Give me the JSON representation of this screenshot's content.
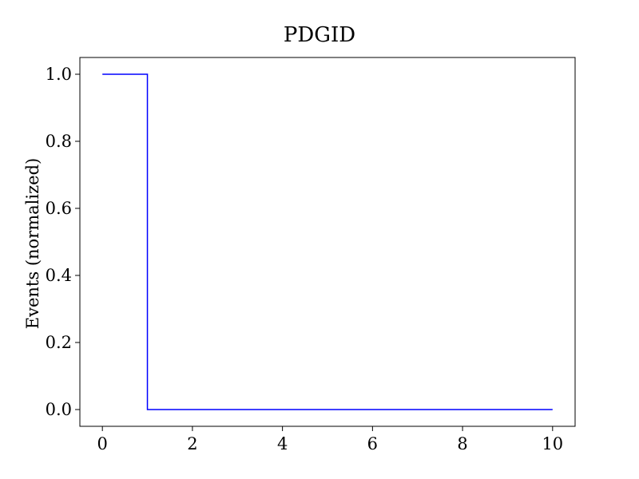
{
  "chart_data": {
    "type": "line",
    "drawstyle": "steps-post",
    "title": "PDGID",
    "xlabel": "",
    "ylabel": "Events (normalized)",
    "xlim": [
      -0.5,
      10.5
    ],
    "ylim": [
      -0.05,
      1.05
    ],
    "xticks": [
      0,
      2,
      4,
      6,
      8,
      10
    ],
    "xtick_labels": [
      "0",
      "2",
      "4",
      "6",
      "8",
      "10"
    ],
    "yticks": [
      0.0,
      0.2,
      0.4,
      0.6,
      0.8,
      1.0
    ],
    "ytick_labels": [
      "0.0",
      "0.2",
      "0.4",
      "0.6",
      "0.8",
      "1.0"
    ],
    "grid": false,
    "series": [
      {
        "color": "#0000ff",
        "x": [
          0,
          1,
          2,
          3,
          4,
          5,
          6,
          7,
          8,
          9,
          10
        ],
        "y": [
          1.0,
          0.0,
          0.0,
          0.0,
          0.0,
          0.0,
          0.0,
          0.0,
          0.0,
          0.0,
          0.0
        ]
      }
    ]
  }
}
